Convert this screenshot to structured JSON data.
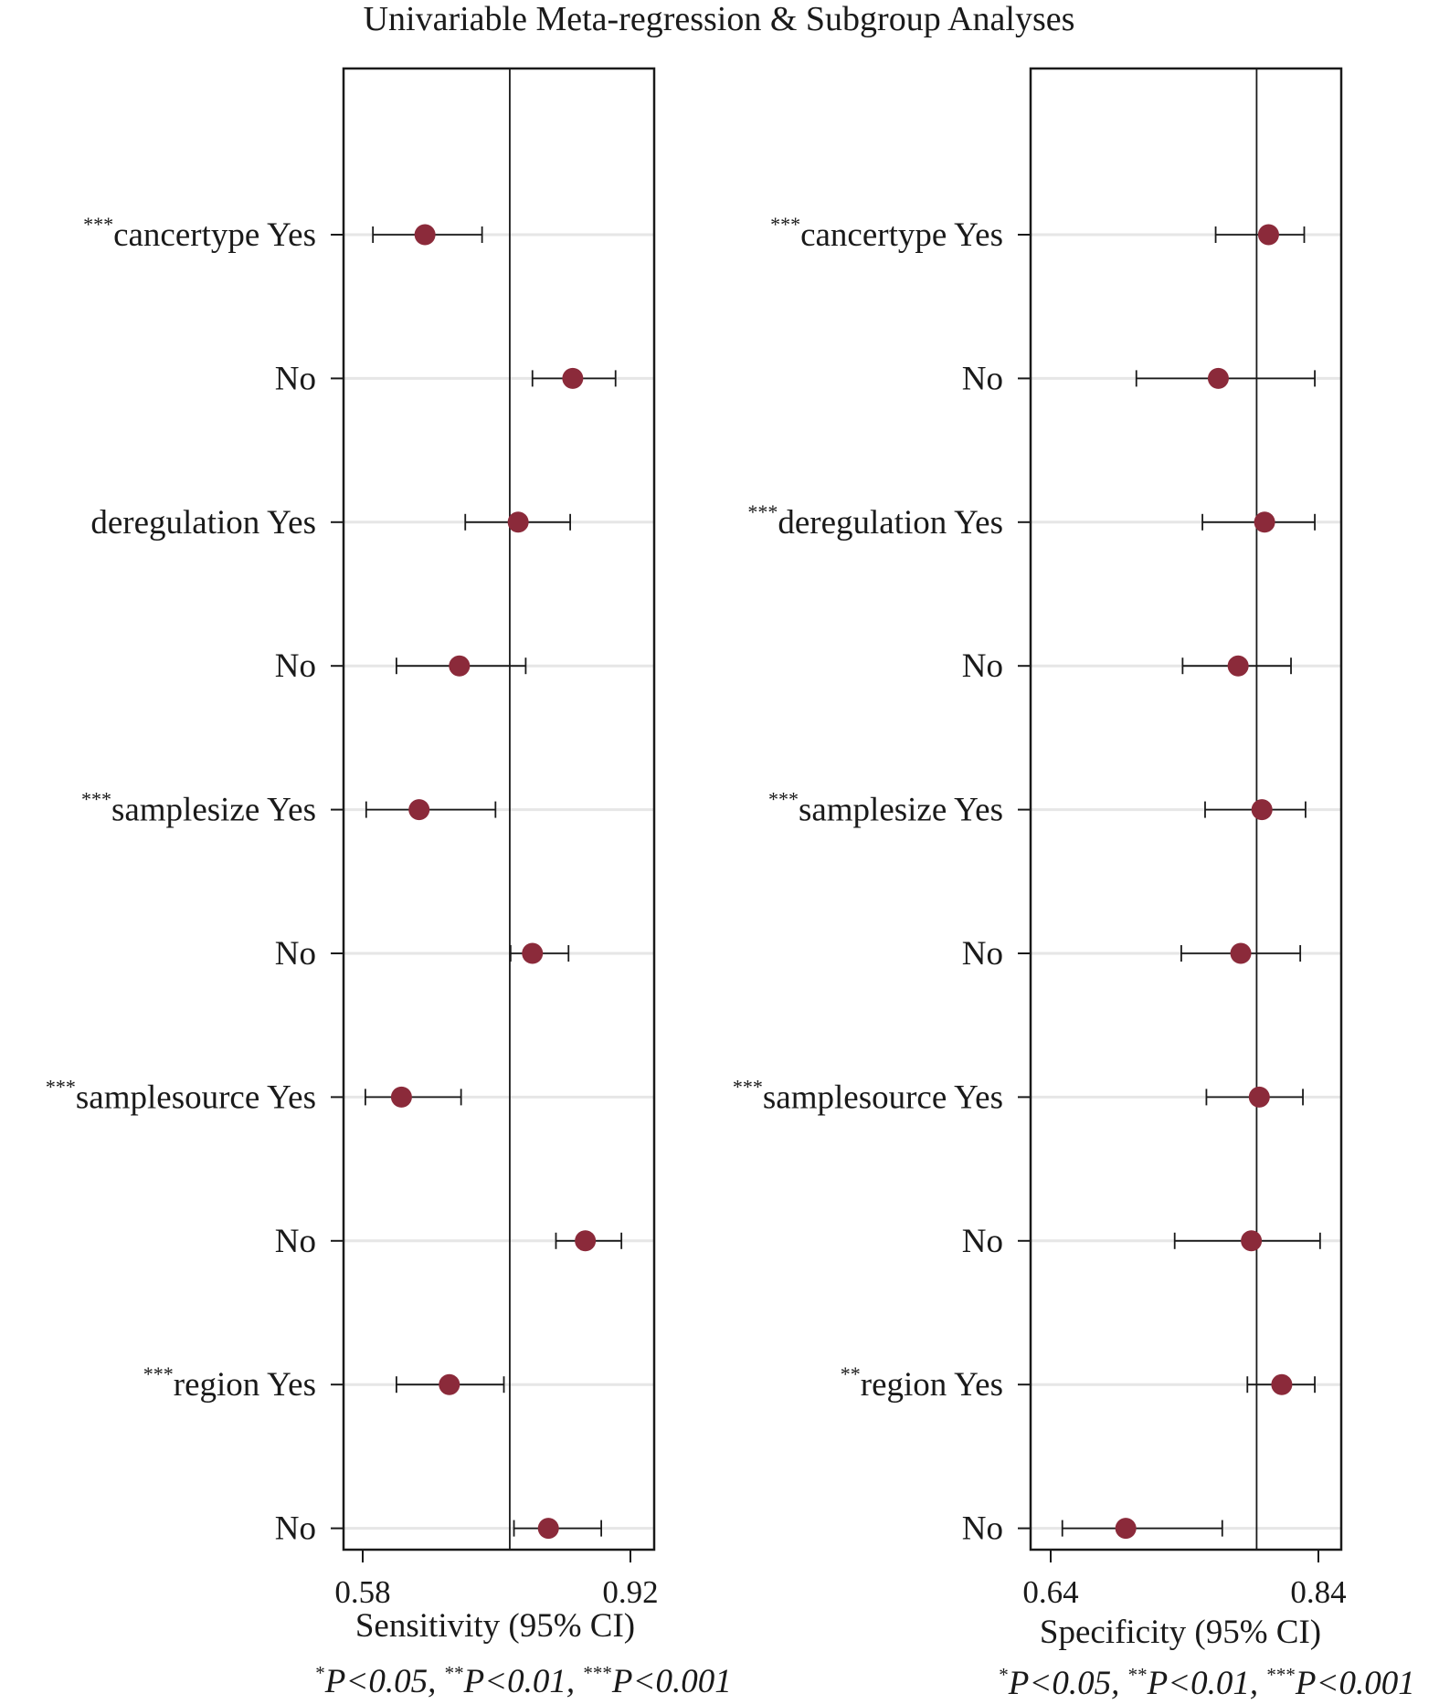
{
  "title": "Univariable Meta-regression & Subgroup Analyses",
  "colors": {
    "marker": "#8b2a3a",
    "line": "#1a1a1a",
    "grid": "#e6e6e6"
  },
  "footnote": {
    "p1": "P<0.05, ",
    "p2": "P<0.01, ",
    "p3": "P<0.001",
    "s1": "*",
    "s2": "**",
    "s3": "***"
  },
  "chart_data": [
    {
      "type": "forest",
      "xlabel": "Sensitivity (95% CI)",
      "xlim": [
        0.565,
        0.935
      ],
      "ticks": [
        "0.58",
        "0.92"
      ],
      "reference_line": 0.763,
      "grid": "horizontal",
      "rows": [
        {
          "label": "cancertype Yes",
          "stars": "***",
          "est": 0.662,
          "lo": 0.6,
          "hi": 0.73
        },
        {
          "label": "No",
          "stars": "",
          "est": 0.838,
          "lo": 0.79,
          "hi": 0.889
        },
        {
          "label": "deregulation Yes",
          "stars": "",
          "est": 0.773,
          "lo": 0.71,
          "hi": 0.835
        },
        {
          "label": "No",
          "stars": "",
          "est": 0.703,
          "lo": 0.628,
          "hi": 0.782
        },
        {
          "label": "samplesize Yes",
          "stars": "***",
          "est": 0.655,
          "lo": 0.592,
          "hi": 0.746
        },
        {
          "label": "No",
          "stars": "",
          "est": 0.79,
          "lo": 0.764,
          "hi": 0.833
        },
        {
          "label": "samplesource Yes",
          "stars": "***",
          "est": 0.634,
          "lo": 0.591,
          "hi": 0.705
        },
        {
          "label": "No",
          "stars": "",
          "est": 0.853,
          "lo": 0.818,
          "hi": 0.896
        },
        {
          "label": "region Yes",
          "stars": "***",
          "est": 0.691,
          "lo": 0.628,
          "hi": 0.756
        },
        {
          "label": "No",
          "stars": "",
          "est": 0.809,
          "lo": 0.768,
          "hi": 0.872
        }
      ]
    },
    {
      "type": "forest",
      "xlabel": "Specificity (95% CI)",
      "xlim": [
        0.625,
        0.86
      ],
      "ticks": [
        "0.64",
        "0.84"
      ],
      "reference_line": 0.796,
      "grid": "horizontal",
      "rows": [
        {
          "label": "cancertype Yes",
          "stars": "***",
          "est": 0.805,
          "lo": 0.765,
          "hi": 0.832
        },
        {
          "label": "No",
          "stars": "",
          "est": 0.767,
          "lo": 0.705,
          "hi": 0.84
        },
        {
          "label": "deregulation Yes",
          "stars": "***",
          "est": 0.802,
          "lo": 0.755,
          "hi": 0.84
        },
        {
          "label": "No",
          "stars": "",
          "est": 0.782,
          "lo": 0.74,
          "hi": 0.822
        },
        {
          "label": "samplesize Yes",
          "stars": "***",
          "est": 0.8,
          "lo": 0.757,
          "hi": 0.833
        },
        {
          "label": "No",
          "stars": "",
          "est": 0.784,
          "lo": 0.739,
          "hi": 0.829
        },
        {
          "label": "samplesource Yes",
          "stars": "***",
          "est": 0.798,
          "lo": 0.758,
          "hi": 0.831
        },
        {
          "label": "No",
          "stars": "",
          "est": 0.792,
          "lo": 0.734,
          "hi": 0.844
        },
        {
          "label": "region Yes",
          "stars": "**",
          "est": 0.815,
          "lo": 0.789,
          "hi": 0.84
        },
        {
          "label": "No",
          "stars": "",
          "est": 0.697,
          "lo": 0.649,
          "hi": 0.77
        }
      ]
    }
  ]
}
